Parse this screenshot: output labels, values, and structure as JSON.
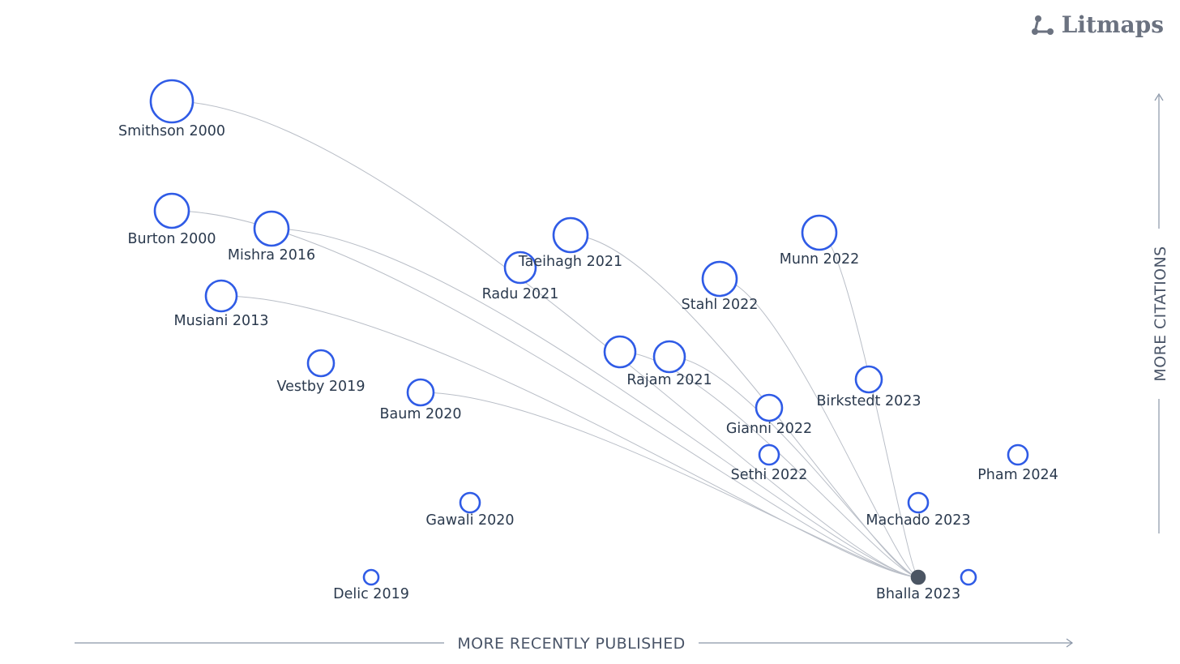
{
  "logo": {
    "text": "Litmaps",
    "icon": "litmaps-logo-icon"
  },
  "axes": {
    "x_label": "MORE RECENTLY PUBLISHED",
    "y_label": "MORE CITATIONS"
  },
  "colors": {
    "node_stroke": "#2f5be6",
    "seed_fill": "#4b5563",
    "edge": "#b9bec7",
    "axis": "#8a96a8"
  },
  "seed": "bhalla-2023",
  "papers": [
    {
      "id": "smithson-2000",
      "label": "Smithson 2000",
      "size": "xl",
      "links_to_seed": true
    },
    {
      "id": "burton-2000",
      "label": "Burton 2000",
      "size": "l",
      "links_to_seed": true
    },
    {
      "id": "mishra-2016",
      "label": "Mishra 2016",
      "size": "l",
      "links_to_seed": true
    },
    {
      "id": "musiani-2013",
      "label": "Musiani 2013",
      "size": "m",
      "links_to_seed": true
    },
    {
      "id": "vestby-2019",
      "label": "Vestby 2019",
      "size": "s",
      "links_to_seed": false
    },
    {
      "id": "baum-2020",
      "label": "Baum 2020",
      "size": "s",
      "links_to_seed": true
    },
    {
      "id": "gawali-2020",
      "label": "Gawali 2020",
      "size": "xs",
      "links_to_seed": false
    },
    {
      "id": "delic-2019",
      "label": "Delic 2019",
      "size": "xxs",
      "links_to_seed": false
    },
    {
      "id": "radu-2021",
      "label": "Radu 2021",
      "size": "m",
      "links_to_seed": false
    },
    {
      "id": "taeihagh-2021",
      "label": "Taeihagh 2021",
      "size": "l",
      "links_to_seed": true
    },
    {
      "id": "unlabeled-2021",
      "label": "",
      "size": "m",
      "links_to_seed": true
    },
    {
      "id": "rajam-2021",
      "label": "Rajam 2021",
      "size": "m",
      "links_to_seed": true
    },
    {
      "id": "stahl-2022",
      "label": "Stahl 2022",
      "size": "l",
      "links_to_seed": true
    },
    {
      "id": "munn-2022",
      "label": "Munn 2022",
      "size": "l",
      "links_to_seed": true
    },
    {
      "id": "gianni-2022",
      "label": "Gianni 2022",
      "size": "s",
      "links_to_seed": false
    },
    {
      "id": "sethi-2022",
      "label": "Sethi 2022",
      "size": "xs",
      "links_to_seed": false
    },
    {
      "id": "birkstedt-2023",
      "label": "Birkstedt 2023",
      "size": "s",
      "links_to_seed": false
    },
    {
      "id": "machado-2023",
      "label": "Machado 2023",
      "size": "xs",
      "links_to_seed": false
    },
    {
      "id": "pham-2024",
      "label": "Pham 2024",
      "size": "xs",
      "links_to_seed": false
    },
    {
      "id": "unlabeled-2024",
      "label": "",
      "size": "xxs",
      "links_to_seed": false
    },
    {
      "id": "bhalla-2023",
      "label": "Bhalla 2023",
      "size": "seed",
      "links_to_seed": false
    }
  ]
}
